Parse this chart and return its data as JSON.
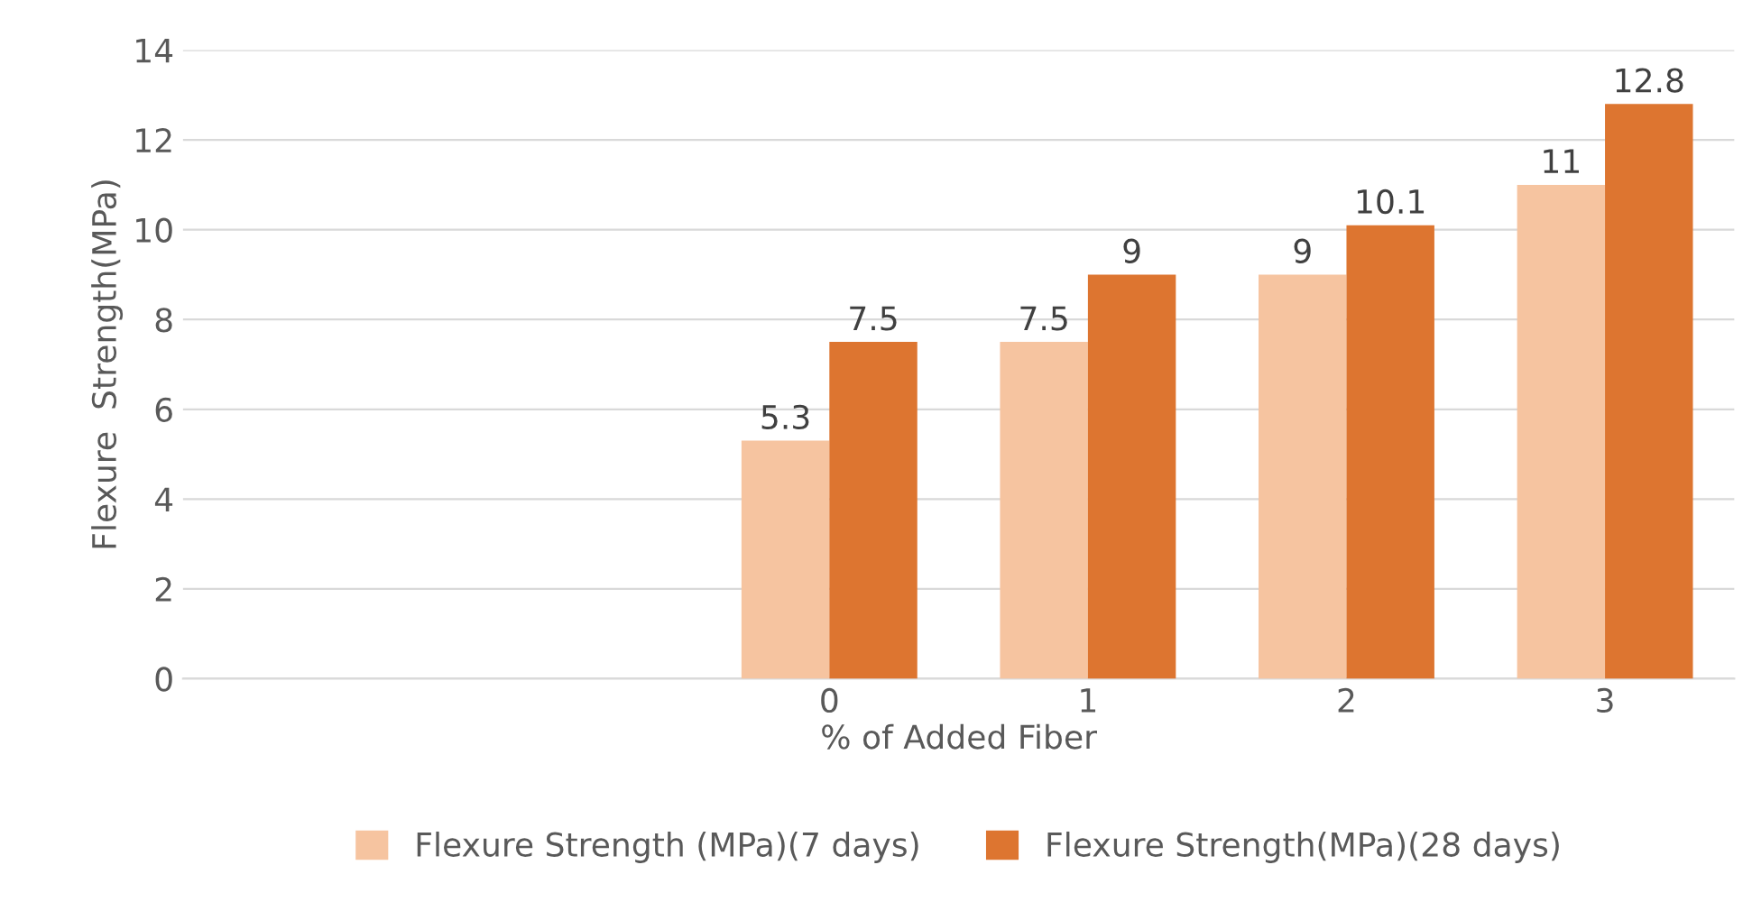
{
  "chart_data": {
    "type": "bar",
    "xlabel": "% of Added Fiber",
    "ylabel": "Flexure  Strength(MPa)",
    "categories": [
      null,
      null,
      "0",
      "1",
      "2",
      "3"
    ],
    "series": [
      {
        "name": "Flexure Strength (MPa)(7 days)",
        "color": "#f6c4a0",
        "values": [
          null,
          null,
          5.3,
          7.5,
          9,
          11
        ]
      },
      {
        "name": "Flexure Strength(MPa)(28 days)",
        "color": "#dd7530",
        "values": [
          null,
          null,
          7.5,
          9,
          10.1,
          12.8
        ]
      }
    ],
    "ylim": [
      0,
      14
    ],
    "yticks": [
      0,
      2,
      4,
      6,
      8,
      10,
      12,
      14
    ],
    "grid": "y",
    "legend": "bottom",
    "data_labels": true
  }
}
